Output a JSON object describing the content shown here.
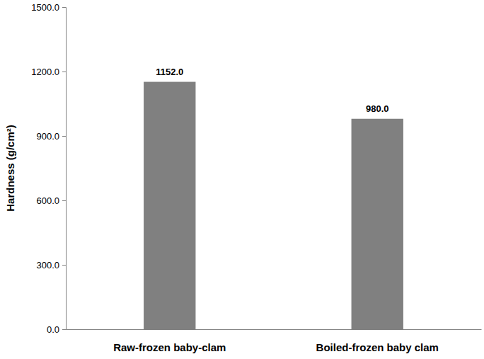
{
  "chart_data": {
    "type": "bar",
    "y_label": "Hardness (g/cm²)",
    "categories": [
      "Raw-frozen baby-clam",
      "Boiled-frozen baby clam"
    ],
    "values": [
      1152.0,
      980.0
    ],
    "value_labels": [
      "1152.0",
      "980.0"
    ],
    "color": "#808080",
    "ylim": [
      0,
      1500
    ],
    "yticks": [
      {
        "value": 0,
        "label": "0.0"
      },
      {
        "value": 300,
        "label": "300.0"
      },
      {
        "value": 600,
        "label": "600.0"
      },
      {
        "value": 900,
        "label": "900.0"
      },
      {
        "value": 1200,
        "label": "1200.0"
      },
      {
        "value": 1500,
        "label": "1500.0"
      }
    ],
    "grid": false,
    "data_labels": true
  }
}
